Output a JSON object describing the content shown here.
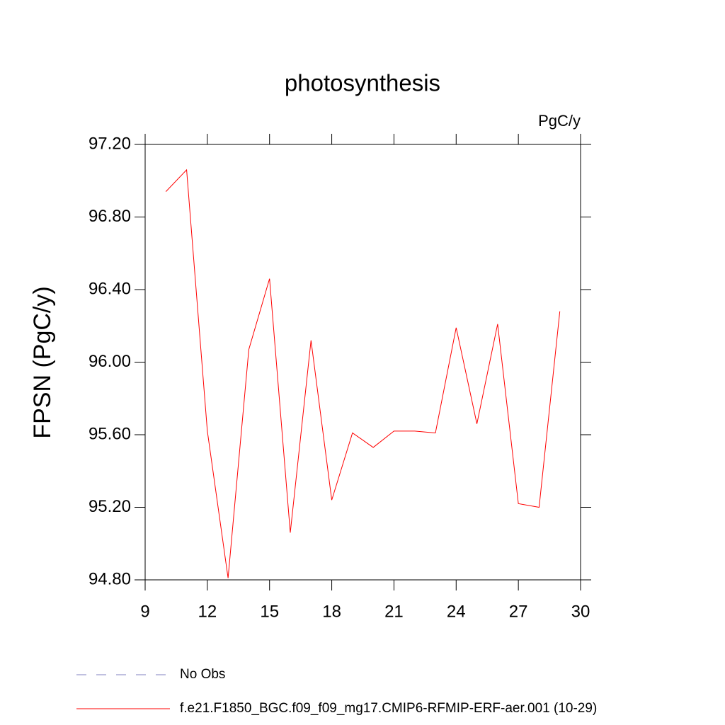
{
  "chart_data": {
    "type": "line",
    "title": "photosynthesis",
    "units": "PgC/y",
    "ylabel": "FPSN  (PgC/y)",
    "x": [
      10,
      11,
      12,
      13,
      14,
      15,
      16,
      17,
      18,
      19,
      20,
      21,
      22,
      23,
      24,
      25,
      26,
      27,
      28,
      29
    ],
    "series": [
      {
        "name": "No Obs",
        "color": "#8080c0",
        "dashed": true,
        "values": [
          null,
          null,
          null,
          null,
          null,
          null,
          null,
          null,
          null,
          null,
          null,
          null,
          null,
          null,
          null,
          null,
          null,
          null,
          null,
          null
        ]
      },
      {
        "name": "f.e21.F1850_BGC.f09_f09_mg17.CMIP6-RFMIP-ERF-aer.001 (10-29)",
        "color": "#ff0000",
        "dashed": false,
        "values": [
          96.94,
          97.06,
          95.62,
          94.81,
          96.07,
          96.46,
          95.06,
          96.12,
          95.24,
          95.61,
          95.53,
          95.62,
          95.62,
          95.61,
          96.19,
          95.66,
          96.21,
          95.22,
          95.2,
          96.28
        ]
      }
    ],
    "xlim": [
      9,
      30
    ],
    "xticks": [
      9,
      12,
      15,
      18,
      21,
      24,
      27,
      30
    ],
    "ylim": [
      94.8,
      97.2
    ],
    "yticks": [
      {
        "value": 94.8,
        "label": "94.80"
      },
      {
        "value": 95.2,
        "label": "95.20"
      },
      {
        "value": 95.6,
        "label": "95.60"
      },
      {
        "value": 96.0,
        "label": "96.00"
      },
      {
        "value": 96.4,
        "label": "96.40"
      },
      {
        "value": 96.8,
        "label": "96.80"
      },
      {
        "value": 97.2,
        "label": "97.20"
      }
    ],
    "grid": false,
    "legend": "bottom-left"
  }
}
